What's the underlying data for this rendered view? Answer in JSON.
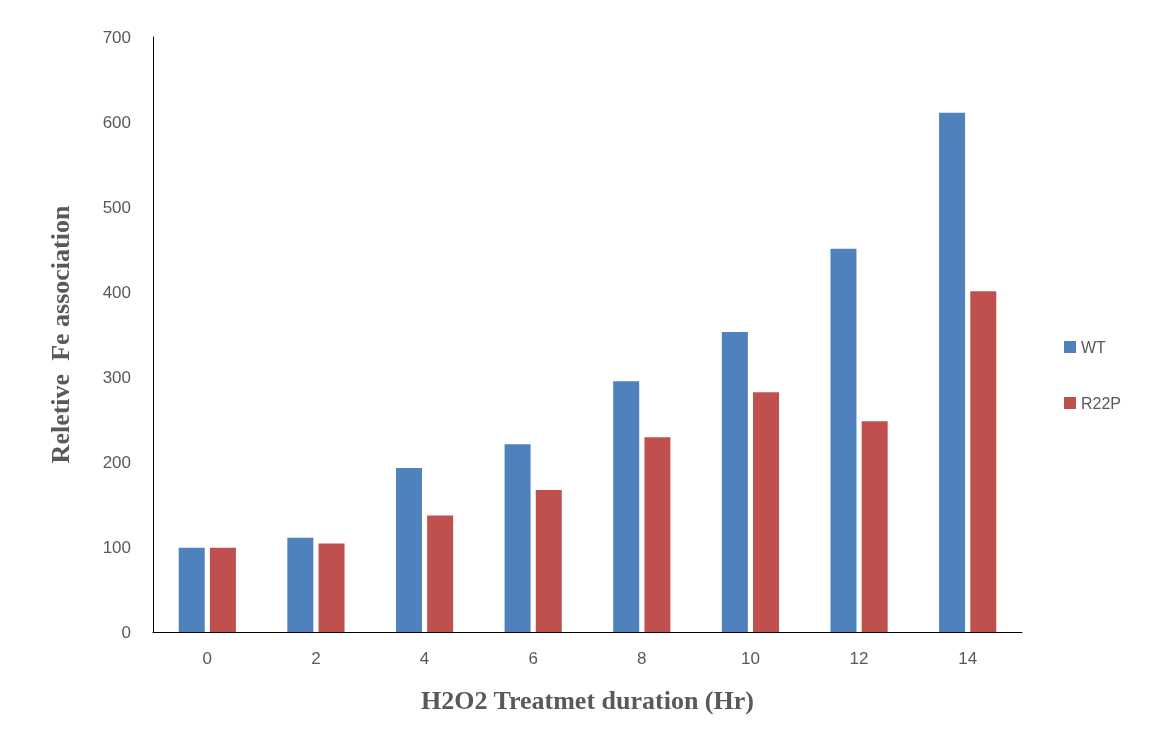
{
  "chart_data": {
    "type": "bar",
    "xlabel": "H2O2 Treatmet duration (Hr)",
    "ylabel": "Reletive  Fe association",
    "categories": [
      "0",
      "2",
      "4",
      "6",
      "8",
      "10",
      "12",
      "14"
    ],
    "series": [
      {
        "name": "WT",
        "color": "#4f81bd",
        "values": [
          99,
          111,
          193,
          221,
          295,
          353,
          451,
          611
        ]
      },
      {
        "name": "R22P",
        "color": "#c0504d",
        "values": [
          99,
          104,
          137,
          167,
          229,
          282,
          248,
          401
        ]
      }
    ],
    "ylim": [
      0,
      700
    ],
    "yticks": [
      0,
      100,
      200,
      300,
      400,
      500,
      600,
      700
    ],
    "grid": false,
    "legend": "right"
  }
}
